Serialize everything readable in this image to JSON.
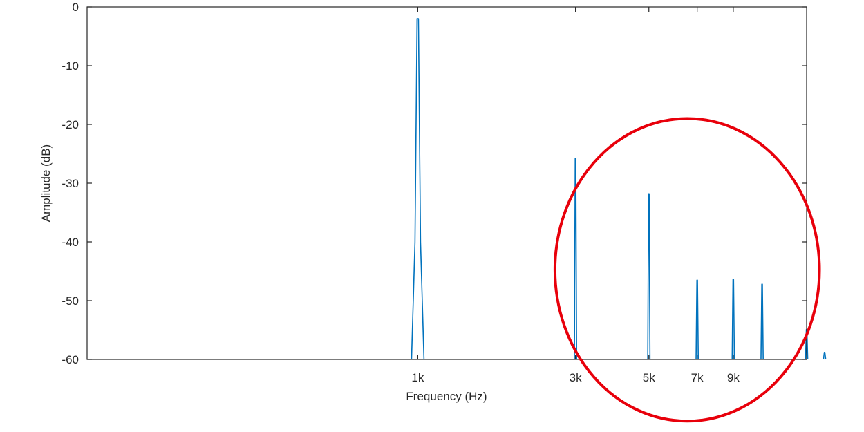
{
  "chart_data": {
    "type": "line",
    "title": "",
    "xlabel": "Frequency (Hz)",
    "ylabel": "Amplitude (dB)",
    "x_scale": "log",
    "xlim": [
      100,
      15000
    ],
    "ylim": [
      -60,
      0
    ],
    "grid": false,
    "y_ticks": [
      0,
      -10,
      -20,
      -30,
      -40,
      -50,
      -60
    ],
    "y_tick_labels": [
      "0",
      "-10",
      "-20",
      "-30",
      "-40",
      "-50",
      "-60"
    ],
    "x_ticks": [
      1000,
      3000,
      5000,
      7000,
      9000
    ],
    "x_tick_labels": [
      "1k",
      "3k",
      "5k",
      "7k",
      "9k"
    ],
    "series": [
      {
        "color": "#0072bd",
        "peaks": [
          {
            "x": 1000,
            "y": -2
          },
          {
            "x": 3000,
            "y": -25.8
          },
          {
            "x": 5000,
            "y": -31.8
          },
          {
            "x": 7000,
            "y": -46.5
          },
          {
            "x": 9000,
            "y": -46.4
          },
          {
            "x": 11000,
            "y": -47.2
          },
          {
            "x": 15000,
            "y": -54.9
          },
          {
            "x": 17000,
            "y": -58.8
          }
        ]
      }
    ],
    "annotation": {
      "shape": "ellipse",
      "color": "#e8000b",
      "x_center": 6400,
      "y_center": -44.7,
      "x_range": [
        2600,
        16400
      ],
      "y_range": [
        -19,
        -70.5
      ]
    }
  }
}
